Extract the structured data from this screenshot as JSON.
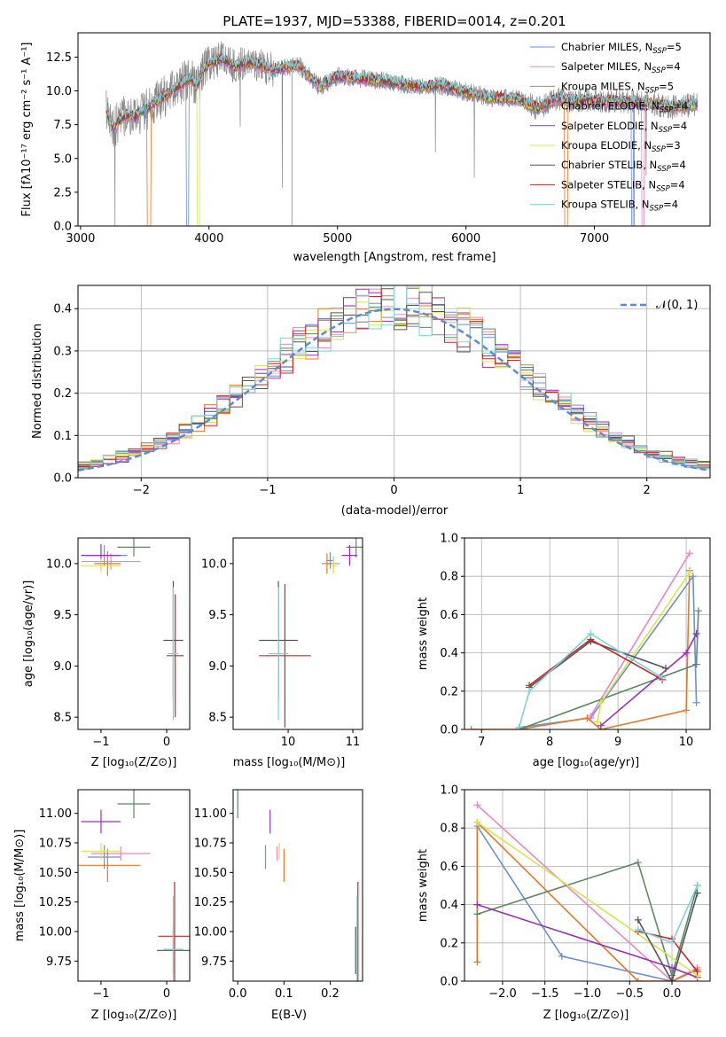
{
  "colors": {
    "chab_miles": "#6a8fd8",
    "salp_miles": "#e887c4",
    "krou_miles": "#e27a2a",
    "chab_elodie": "#5c8a62",
    "salp_elodie": "#9b30b8",
    "krou_elodie": "#d4e84a",
    "chab_stelib": "#555555",
    "salp_stelib": "#c12b2b",
    "krou_stelib": "#7dd3d8",
    "data": "#888888",
    "normal": "#5b8bd6"
  },
  "chart_data": [
    {
      "id": "spectrum",
      "type": "line",
      "title": "PLATE=1937, MJD=53388, FIBERID=0014, z=0.201",
      "xlabel": "wavelength [Angstrom, rest frame]",
      "ylabel": "Flux [fλ10⁻¹⁷ erg cm⁻² s⁻¹ A⁻¹]",
      "xlim": [
        2980,
        7900
      ],
      "ylim": [
        0,
        14.3
      ],
      "xticks": [
        "3000",
        "4000",
        "5000",
        "6000",
        "7000"
      ],
      "yticks": [
        "0.0",
        "2.5",
        "5.0",
        "7.5",
        "10.0",
        "12.5"
      ],
      "legend_position": "top-right",
      "legend": [
        {
          "key": "chab_miles",
          "label": "Chabrier MILES, N",
          "sub": "SSP",
          "val": "=5"
        },
        {
          "key": "salp_miles",
          "label": "Salpeter MILES, N",
          "sub": "SSP",
          "val": "=4"
        },
        {
          "key": "krou_miles",
          "label": "Kroupa MILES, N",
          "sub": "SSP",
          "val": "=5"
        },
        {
          "key": "chab_elodie",
          "label": "Chabrier ELODIE, N",
          "sub": "SSP",
          "val": "=4"
        },
        {
          "key": "salp_elodie",
          "label": "Salpeter ELODIE, N",
          "sub": "SSP",
          "val": "=4"
        },
        {
          "key": "krou_elodie",
          "label": "Kroupa ELODIE, N",
          "sub": "SSP",
          "val": "=3"
        },
        {
          "key": "chab_stelib",
          "label": "Chabrier STELIB, N",
          "sub": "SSP",
          "val": "=4"
        },
        {
          "key": "salp_stelib",
          "label": "Salpeter STELIB, N",
          "sub": "SSP",
          "val": "=4"
        },
        {
          "key": "krou_stelib",
          "label": "Kroupa STELIB, N",
          "sub": "SSP",
          "val": "=4"
        }
      ],
      "model_envelope": {
        "x": [
          3200,
          3260,
          3300,
          3360,
          3420,
          3500,
          3600,
          3700,
          3800,
          3860,
          3900,
          3960,
          4000,
          4100,
          4200,
          4300,
          4400,
          4500,
          4700,
          4860,
          5000,
          5200,
          5400,
          5600,
          5800,
          6000,
          6200,
          6400,
          6560,
          6700,
          6800,
          7000,
          7200,
          7400,
          7600,
          7800
        ],
        "y": [
          8.5,
          7.2,
          7.8,
          8.2,
          8.1,
          8.6,
          9.3,
          9.9,
          10.6,
          11.0,
          10.2,
          11.6,
          12.0,
          12.4,
          11.8,
          12.1,
          11.9,
          11.6,
          11.9,
          10.3,
          11.1,
          10.9,
          10.7,
          10.3,
          10.4,
          9.9,
          9.5,
          9.4,
          8.7,
          9.4,
          9.3,
          9.3,
          9.2,
          9.1,
          8.8,
          9.0
        ]
      },
      "drops": [
        {
          "key": "krou_miles",
          "x": [
            3520,
            3545
          ]
        },
        {
          "key": "chab_miles",
          "x": [
            3825,
            3840
          ]
        },
        {
          "key": "krou_elodie",
          "x": [
            3910,
            3925
          ]
        },
        {
          "key": "krou_miles",
          "x": [
            6770,
            6790
          ]
        },
        {
          "key": "chab_miles",
          "x": [
            7290,
            7300
          ]
        },
        {
          "key": "salp_miles",
          "x": [
            7370,
            7385
          ]
        }
      ]
    },
    {
      "id": "residuals",
      "type": "histogram",
      "xlabel": "(data-model)/error",
      "ylabel": "Normed distribution",
      "xlim": [
        -2.5,
        2.5
      ],
      "ylim": [
        0,
        0.455
      ],
      "xticks": [
        "−2",
        "−1",
        "0",
        "1",
        "2"
      ],
      "yticks": [
        "0.0",
        "0.1",
        "0.2",
        "0.3",
        "0.4"
      ],
      "grid": true,
      "legend_position": "top-right",
      "curve_label": "𝒩(0, 1)",
      "bin_width": 0.1
    },
    {
      "id": "age_vs_Z",
      "type": "errorbar",
      "xlabel": "Z [log₁₀(Z/Z⊙)]",
      "ylabel": "age  [log₁₀(age/yr)]",
      "xlim": [
        -1.35,
        0.35
      ],
      "ylim": [
        8.38,
        10.25
      ],
      "xticks": [
        "−1",
        "0"
      ],
      "yticks": [
        "8.5",
        "9.0",
        "9.5",
        "10.0"
      ],
      "points": [
        {
          "key": "chab_miles",
          "x": -0.95,
          "y": 10.08,
          "xerr": 0.35,
          "yerr": 0.1
        },
        {
          "key": "salp_miles",
          "x": -0.85,
          "y": 10.02,
          "xerr": 0.45,
          "yerr": 0.08
        },
        {
          "key": "krou_miles",
          "x": -0.9,
          "y": 10.0,
          "xerr": 0.2,
          "yerr": 0.12
        },
        {
          "key": "chab_elodie",
          "x": -0.5,
          "y": 10.16,
          "xerr": 0.25,
          "yerr": 0.09
        },
        {
          "key": "salp_elodie",
          "x": -1.0,
          "y": 10.08,
          "xerr": 0.3,
          "yerr": 0.11
        },
        {
          "key": "krou_elodie",
          "x": -1.0,
          "y": 9.98,
          "xerr": 0.3,
          "yerr": 0.07
        },
        {
          "key": "chab_stelib",
          "x": 0.1,
          "y": 9.25,
          "xerr": 0.15,
          "yerr": 0.58
        },
        {
          "key": "salp_stelib",
          "x": 0.13,
          "y": 9.1,
          "xerr": 0.13,
          "yerr": 0.6
        },
        {
          "key": "krou_stelib",
          "x": 0.1,
          "y": 9.12,
          "xerr": 0.08,
          "yerr": 0.65
        }
      ]
    },
    {
      "id": "age_vs_mass",
      "type": "errorbar",
      "xlabel": "mass [log₁₀(M/M⊙)]",
      "ylabel": "",
      "xlim": [
        9.15,
        11.15
      ],
      "ylim": [
        8.38,
        10.25
      ],
      "xticks": [
        "10",
        "11"
      ],
      "yticks": [
        "8.5",
        "9.0",
        "9.5",
        "10.0"
      ],
      "points": [
        {
          "key": "chab_miles",
          "x": 10.65,
          "y": 10.03,
          "xerr": 0.05,
          "yerr": 0.08
        },
        {
          "key": "salp_miles",
          "x": 10.7,
          "y": 10.0,
          "xerr": 0.1,
          "yerr": 0.07
        },
        {
          "key": "krou_miles",
          "x": 10.6,
          "y": 10.0,
          "xerr": 0.08,
          "yerr": 0.1
        },
        {
          "key": "chab_elodie",
          "x": 11.05,
          "y": 10.16,
          "xerr": 0.15,
          "yerr": 0.1
        },
        {
          "key": "salp_elodie",
          "x": 10.95,
          "y": 10.08,
          "xerr": 0.12,
          "yerr": 0.1
        },
        {
          "key": "krou_elodie",
          "x": 10.7,
          "y": 9.98,
          "xerr": 0.05,
          "yerr": 0.08
        },
        {
          "key": "chab_stelib",
          "x": 9.85,
          "y": 9.25,
          "xerr": 0.3,
          "yerr": 0.58
        },
        {
          "key": "salp_stelib",
          "x": 9.95,
          "y": 9.1,
          "xerr": 0.4,
          "yerr": 0.7
        },
        {
          "key": "krou_stelib",
          "x": 9.85,
          "y": 9.12,
          "xerr": 0.15,
          "yerr": 0.65
        }
      ]
    },
    {
      "id": "weight_vs_age",
      "type": "line",
      "xlabel": "age  [log₁₀(age/yr)]",
      "ylabel": "mass weight",
      "xlim": [
        6.75,
        10.35
      ],
      "ylim": [
        0,
        1.0
      ],
      "xticks": [
        "7",
        "8",
        "9",
        "10"
      ],
      "yticks": [
        "0.0",
        "0.2",
        "0.4",
        "0.6",
        "0.8",
        "1.0"
      ],
      "grid": true,
      "series": [
        {
          "key": "chab_miles",
          "x": [
            7.55,
            8.6,
            10.1,
            10.15
          ],
          "y": [
            0.01,
            0.06,
            0.8,
            0.14
          ]
        },
        {
          "key": "salp_miles",
          "x": [
            8.6,
            10.05
          ],
          "y": [
            0.07,
            0.92
          ]
        },
        {
          "key": "krou_miles",
          "x": [
            6.85,
            7.55,
            8.55,
            8.75,
            10.0,
            10.05
          ],
          "y": [
            0.0,
            0.0,
            0.06,
            0.0,
            0.1,
            0.83
          ]
        },
        {
          "key": "chab_elodie",
          "x": [
            7.55,
            10.15,
            10.18,
            10.15
          ],
          "y": [
            0.0,
            0.34,
            0.62,
            0.34
          ]
        },
        {
          "key": "salp_elodie",
          "x": [
            8.75,
            10.0,
            10.15
          ],
          "y": [
            0.02,
            0.4,
            0.5
          ]
        },
        {
          "key": "krou_elodie",
          "x": [
            8.7,
            8.75,
            10.05
          ],
          "y": [
            0.04,
            0.14,
            0.82
          ]
        },
        {
          "key": "chab_stelib",
          "x": [
            7.7,
            8.6,
            9.7
          ],
          "y": [
            0.22,
            0.46,
            0.32
          ]
        },
        {
          "key": "salp_stelib",
          "x": [
            7.7,
            8.6,
            9.65
          ],
          "y": [
            0.23,
            0.47,
            0.26
          ]
        },
        {
          "key": "krou_stelib",
          "x": [
            7.55,
            7.7,
            8.6,
            9.65
          ],
          "y": [
            0.01,
            0.2,
            0.5,
            0.27
          ]
        }
      ]
    },
    {
      "id": "mass_vs_Z",
      "type": "errorbar",
      "xlabel": "Z [log₁₀(Z/Z⊙)]",
      "ylabel": "mass [log₁₀(M/M⊙)]",
      "xlim": [
        -1.35,
        0.35
      ],
      "ylim": [
        9.58,
        11.2
      ],
      "xticks": [
        "−1",
        "0"
      ],
      "yticks": [
        "9.75",
        "10.00",
        "10.25",
        "10.50",
        "10.75",
        "11.00"
      ],
      "points": [
        {
          "key": "chab_miles",
          "x": -0.95,
          "y": 10.63,
          "xerr": 0.25,
          "yerr": 0.1
        },
        {
          "key": "salp_miles",
          "x": -0.7,
          "y": 10.66,
          "xerr": 0.45,
          "yerr": 0.06
        },
        {
          "key": "krou_miles",
          "x": -0.9,
          "y": 10.56,
          "xerr": 0.5,
          "yerr": 0.14
        },
        {
          "key": "chab_elodie",
          "x": -0.5,
          "y": 11.08,
          "xerr": 0.25,
          "yerr": 0.12
        },
        {
          "key": "salp_elodie",
          "x": -1.0,
          "y": 10.93,
          "xerr": 0.3,
          "yerr": 0.1
        },
        {
          "key": "krou_elodie",
          "x": -1.0,
          "y": 10.68,
          "xerr": 0.3,
          "yerr": 0.07
        },
        {
          "key": "chab_stelib",
          "x": 0.1,
          "y": 9.84,
          "xerr": 0.25,
          "yerr": 0.2
        },
        {
          "key": "salp_stelib",
          "x": 0.12,
          "y": 9.96,
          "xerr": 0.25,
          "yerr": 0.46
        },
        {
          "key": "krou_stelib",
          "x": 0.1,
          "y": 9.85,
          "xerr": 0.15,
          "yerr": 0.45
        }
      ]
    },
    {
      "id": "mass_vs_ebv",
      "type": "errorbar",
      "xlabel": "E(B-V)",
      "ylabel": "",
      "xlim": [
        -0.01,
        0.27
      ],
      "ylim": [
        9.58,
        11.2
      ],
      "xticks": [
        "0.0",
        "0.1",
        "0.2"
      ],
      "yticks": [
        "9.75",
        "10.00",
        "10.25",
        "10.50",
        "10.75",
        "11.00"
      ],
      "points": [
        {
          "key": "chab_elodie",
          "x": 0.0,
          "y": 11.08,
          "xerr": 0,
          "yerr": 0.12
        },
        {
          "key": "salp_elodie",
          "x": 0.07,
          "y": 10.93,
          "xerr": 0,
          "yerr": 0.1
        },
        {
          "key": "krou_elodie",
          "x": 0.09,
          "y": 10.68,
          "xerr": 0,
          "yerr": 0.07
        },
        {
          "key": "chab_miles",
          "x": 0.06,
          "y": 10.63,
          "xerr": 0,
          "yerr": 0.1
        },
        {
          "key": "salp_miles",
          "x": 0.085,
          "y": 10.66,
          "xerr": 0,
          "yerr": 0.06
        },
        {
          "key": "krou_miles",
          "x": 0.1,
          "y": 10.56,
          "xerr": 0,
          "yerr": 0.14
        },
        {
          "key": "chab_stelib",
          "x": 0.255,
          "y": 9.84,
          "xerr": 0,
          "yerr": 0.2
        },
        {
          "key": "salp_stelib",
          "x": 0.26,
          "y": 9.96,
          "xerr": 0,
          "yerr": 0.46
        },
        {
          "key": "krou_stelib",
          "x": 0.258,
          "y": 9.85,
          "xerr": 0,
          "yerr": 0.45
        }
      ]
    },
    {
      "id": "weight_vs_Z",
      "type": "line",
      "xlabel": "Z [log₁₀(Z/Z⊙)]",
      "ylabel": "mass weight",
      "xlim": [
        -2.45,
        0.45
      ],
      "ylim": [
        0,
        1.0
      ],
      "xticks": [
        "−2.0",
        "−1.5",
        "−1.0",
        "−0.5",
        "0.0"
      ],
      "yticks": [
        "0.0",
        "0.2",
        "0.4",
        "0.6",
        "0.8",
        "1.0"
      ],
      "grid": true,
      "series": [
        {
          "key": "chab_miles",
          "x": [
            -2.3,
            -1.3,
            0.0,
            0.3
          ],
          "y": [
            0.81,
            0.13,
            0.0,
            0.06
          ]
        },
        {
          "key": "salp_miles",
          "x": [
            -2.3,
            0.0,
            0.3
          ],
          "y": [
            0.92,
            0.0,
            0.07
          ]
        },
        {
          "key": "krou_miles",
          "x": [
            -2.3,
            -2.3,
            -0.4,
            0.0,
            0.3
          ],
          "y": [
            0.1,
            0.83,
            0.0,
            0.0,
            0.06
          ]
        },
        {
          "key": "chab_elodie",
          "x": [
            -2.3,
            -0.4,
            0.0,
            0.3
          ],
          "y": [
            0.35,
            0.62,
            0.03,
            0.5
          ]
        },
        {
          "key": "salp_elodie",
          "x": [
            -2.3,
            0.0,
            0.3
          ],
          "y": [
            0.4,
            0.07,
            0.02
          ]
        },
        {
          "key": "krou_elodie",
          "x": [
            -2.3,
            0.3
          ],
          "y": [
            0.83,
            0.03
          ]
        },
        {
          "key": "chab_stelib",
          "x": [
            -0.4,
            0.0,
            0.3
          ],
          "y": [
            0.32,
            0.0,
            0.46
          ]
        },
        {
          "key": "salp_stelib",
          "x": [
            -0.4,
            0.0,
            0.3
          ],
          "y": [
            0.26,
            0.22,
            0.05
          ]
        },
        {
          "key": "krou_stelib",
          "x": [
            -0.4,
            0.0,
            0.3
          ],
          "y": [
            0.27,
            0.2,
            0.5
          ]
        }
      ]
    }
  ]
}
